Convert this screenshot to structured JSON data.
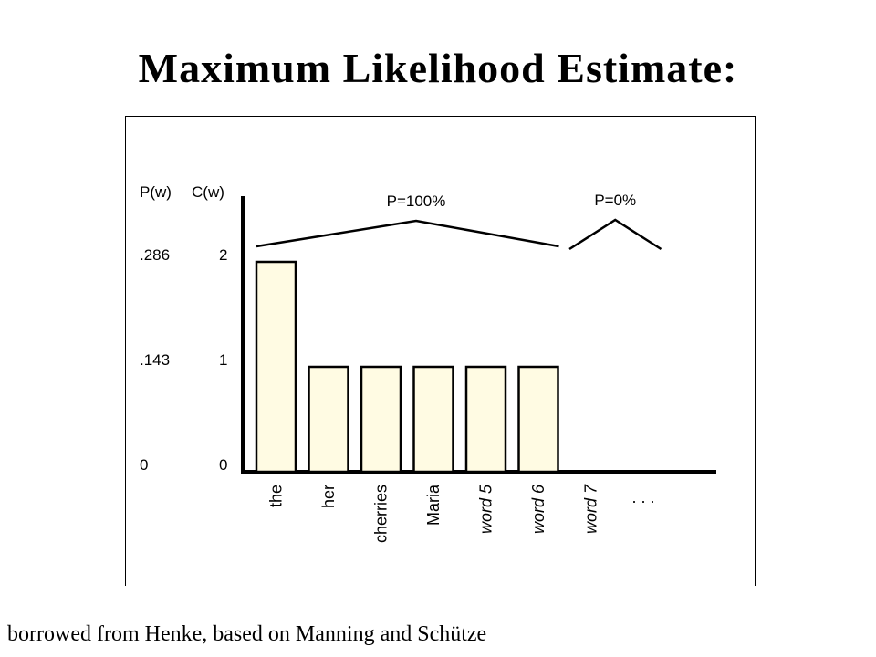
{
  "slide": {
    "title": "Maximum Likelihood Estimate:",
    "caption": "borrowed from Henke, based on Manning and Schütze"
  },
  "chart_data": {
    "type": "bar",
    "y_axis_headers": [
      "P(w)",
      "C(w)"
    ],
    "yticks": [
      {
        "count": "0",
        "prob": "0",
        "value": 0
      },
      {
        "count": "1",
        "prob": ".143",
        "value": 1
      },
      {
        "count": "2",
        "prob": ".286",
        "value": 2
      }
    ],
    "ylim": [
      0,
      2.5
    ],
    "categories": [
      {
        "label": "the",
        "italic": false
      },
      {
        "label": "her",
        "italic": false
      },
      {
        "label": "cherries",
        "italic": false
      },
      {
        "label": "Maria",
        "italic": false
      },
      {
        "label": "word 5",
        "italic": true
      },
      {
        "label": "word 6",
        "italic": true
      },
      {
        "label": "word 7",
        "italic": true
      },
      {
        "label": ". . .",
        "italic": false
      }
    ],
    "values": [
      2,
      1,
      1,
      1,
      1,
      1,
      0,
      null
    ],
    "groups": [
      {
        "label": "P=100%",
        "from": 0,
        "to": 5
      },
      {
        "label": "P=0%",
        "from": 6,
        "to": 7
      }
    ],
    "bar_fill": "#fffbe3",
    "bar_stroke": "#000000",
    "grid": false
  }
}
